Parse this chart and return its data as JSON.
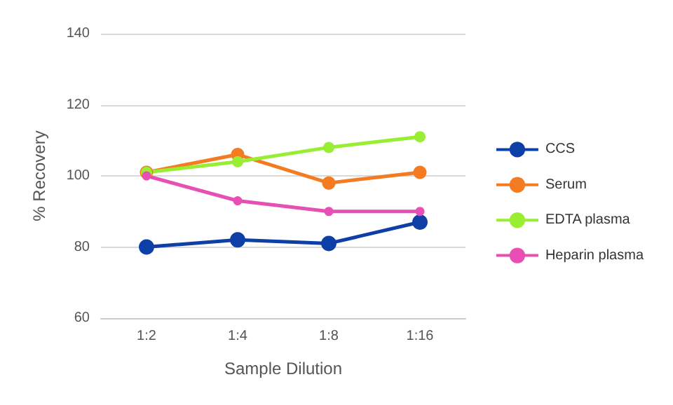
{
  "chart_data": {
    "type": "line",
    "xlabel": "Sample Dilution",
    "ylabel": "% Recovery",
    "categories": [
      "1:2",
      "1:4",
      "1:8",
      "1:16"
    ],
    "series": [
      {
        "name": "CCS",
        "color": "#0d3fa6",
        "values": [
          80,
          82,
          81,
          87
        ]
      },
      {
        "name": "Serum",
        "color": "#f47b20",
        "values": [
          101,
          106,
          98,
          101
        ]
      },
      {
        "name": "EDTA plasma",
        "color": "#99ee33",
        "values": [
          101,
          104,
          108,
          111
        ]
      },
      {
        "name": "Heparin plasma",
        "color": "#e84fb5",
        "values": [
          100,
          93,
          90,
          90
        ]
      }
    ],
    "ylim": [
      60,
      140
    ],
    "yticks": [
      60,
      80,
      100,
      120,
      140
    ],
    "grid": "y",
    "legend": "right",
    "marker": "circle",
    "line_style": "solid"
  }
}
